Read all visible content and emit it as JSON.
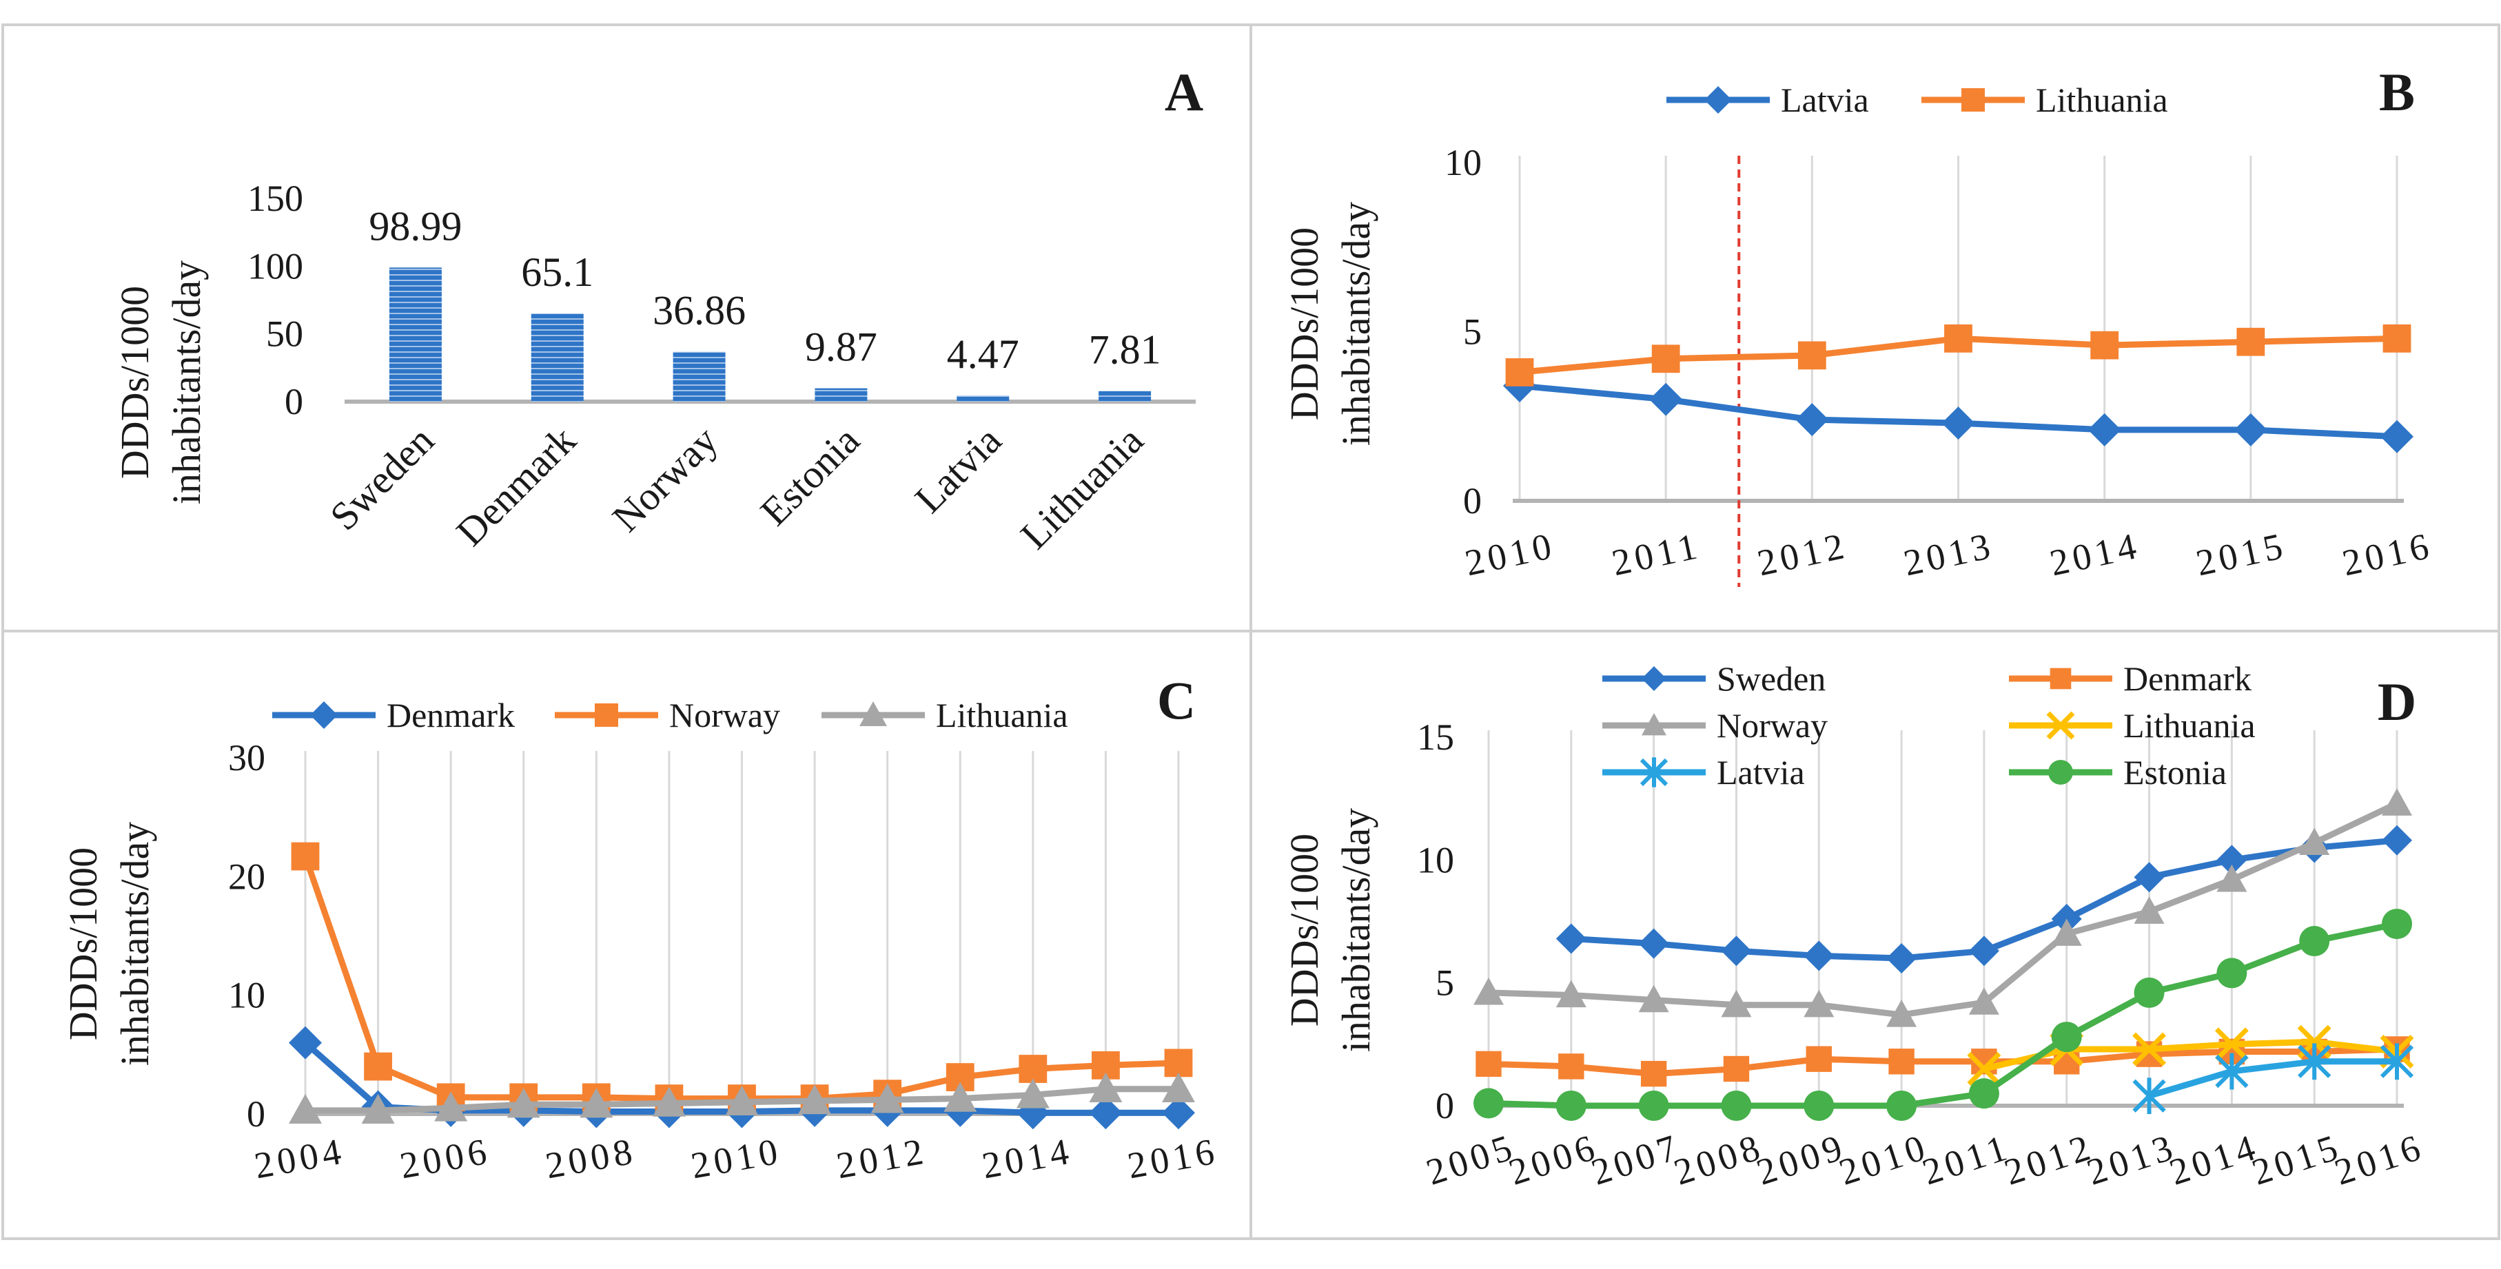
{
  "colors": {
    "blue": "#2e75c7",
    "orange": "#f58231",
    "gray": "#a6a6a6",
    "yellow": "#ffc000",
    "light_blue": "#29a3e0",
    "green": "#46b04a",
    "red_dashed": "#e03c31"
  },
  "chart_data": [
    {
      "panel": "A",
      "type": "bar",
      "ylabel_lines": [
        "DDDs/1000",
        "inhabitants/day"
      ],
      "categories": [
        "Sweden",
        "Denmark",
        "Norway",
        "Estonia",
        "Latvia",
        "Lithuania"
      ],
      "values": [
        98.99,
        65.1,
        36.86,
        9.87,
        4.47,
        7.81
      ],
      "data_labels": [
        "98.99",
        "65.1",
        "36.86",
        "9.87",
        "4.47",
        "7.81"
      ],
      "ylim": [
        0,
        150
      ],
      "yticks": [
        0,
        50,
        100,
        150
      ],
      "bar_color": "#2e75c7"
    },
    {
      "panel": "B",
      "type": "line",
      "ylabel_lines": [
        "DDDs/1000",
        "inhabitants/day"
      ],
      "x": [
        "2010",
        "2011",
        "2012",
        "2013",
        "2014",
        "2015",
        "2016"
      ],
      "ylim": [
        0,
        10
      ],
      "yticks": [
        0,
        5,
        10
      ],
      "vline_after_index": 1.5,
      "series": [
        {
          "name": "Latvia",
          "color": "#2e75c7",
          "marker": "diamond",
          "values": [
            3.4,
            3.0,
            2.4,
            2.3,
            2.1,
            2.1,
            1.9
          ]
        },
        {
          "name": "Lithuania",
          "color": "#f58231",
          "marker": "square",
          "values": [
            3.8,
            4.2,
            4.3,
            4.8,
            4.6,
            4.7,
            4.8
          ]
        }
      ]
    },
    {
      "panel": "C",
      "type": "line",
      "ylabel_lines": [
        "DDDs/1000",
        "inhabitants/day"
      ],
      "x": [
        "2004",
        "2005",
        "2006",
        "2007",
        "2008",
        "2009",
        "2010",
        "2011",
        "2012",
        "2013",
        "2014",
        "2015",
        "2016"
      ],
      "xtick_labels": [
        "2004",
        "",
        "2006",
        "",
        "2008",
        "",
        "2010",
        "",
        "2012",
        "",
        "2014",
        "",
        "2016"
      ],
      "ylim": [
        0,
        30
      ],
      "yticks": [
        0,
        10,
        20,
        30
      ],
      "series": [
        {
          "name": "Denmark",
          "color": "#2e75c7",
          "marker": "diamond",
          "values": [
            6.0,
            0.6,
            0.3,
            0.3,
            0.2,
            0.2,
            0.2,
            0.3,
            0.3,
            0.3,
            0.1,
            0.1,
            0.1
          ]
        },
        {
          "name": "Norway",
          "color": "#f58231",
          "marker": "square",
          "values": [
            21.7,
            4.0,
            1.4,
            1.4,
            1.4,
            1.3,
            1.3,
            1.3,
            1.7,
            3.1,
            3.8,
            4.1,
            4.3
          ]
        },
        {
          "name": "Lithuania",
          "color": "#a6a6a6",
          "marker": "triangle",
          "values": [
            0.3,
            0.3,
            0.5,
            0.8,
            0.8,
            0.9,
            1.0,
            1.1,
            1.2,
            1.3,
            1.6,
            2.1,
            2.1
          ]
        }
      ]
    },
    {
      "panel": "D",
      "type": "line",
      "ylabel_lines": [
        "DDDs/1000",
        "inhabitants/day"
      ],
      "x": [
        "2005",
        "2006",
        "2007",
        "2008",
        "2009",
        "2010",
        "2011",
        "2012",
        "2013",
        "2014",
        "2015",
        "2016"
      ],
      "ylim": [
        0,
        15
      ],
      "yticks": [
        0,
        5,
        10,
        15
      ],
      "series": [
        {
          "name": "Sweden",
          "color": "#2e75c7",
          "marker": "diamond",
          "values": [
            null,
            6.8,
            6.6,
            6.3,
            6.1,
            6.0,
            6.3,
            7.6,
            9.3,
            10.0,
            10.5,
            10.8
          ]
        },
        {
          "name": "Denmark",
          "color": "#f58231",
          "marker": "square",
          "values": [
            1.7,
            1.6,
            1.3,
            1.5,
            1.9,
            1.8,
            1.8,
            1.8,
            2.1,
            2.2,
            2.2,
            2.3
          ]
        },
        {
          "name": "Norway",
          "color": "#a6a6a6",
          "marker": "triangle",
          "values": [
            4.6,
            4.5,
            4.3,
            4.1,
            4.1,
            3.7,
            4.2,
            7.0,
            7.9,
            9.2,
            10.7,
            12.3
          ]
        },
        {
          "name": "Lithuania",
          "color": "#ffc000",
          "marker": "x",
          "values": [
            null,
            null,
            null,
            null,
            null,
            null,
            1.5,
            2.3,
            2.3,
            2.5,
            2.6,
            2.2
          ]
        },
        {
          "name": "Latvia",
          "color": "#29a3e0",
          "marker": "asterisk",
          "values": [
            null,
            null,
            null,
            null,
            null,
            null,
            null,
            null,
            0.4,
            1.4,
            1.8,
            1.8
          ]
        },
        {
          "name": "Estonia",
          "color": "#46b04a",
          "marker": "circle",
          "values": [
            0.1,
            0.0,
            0.0,
            0.0,
            0.0,
            0.0,
            0.5,
            2.8,
            4.6,
            5.4,
            6.7,
            7.4
          ]
        }
      ]
    }
  ]
}
